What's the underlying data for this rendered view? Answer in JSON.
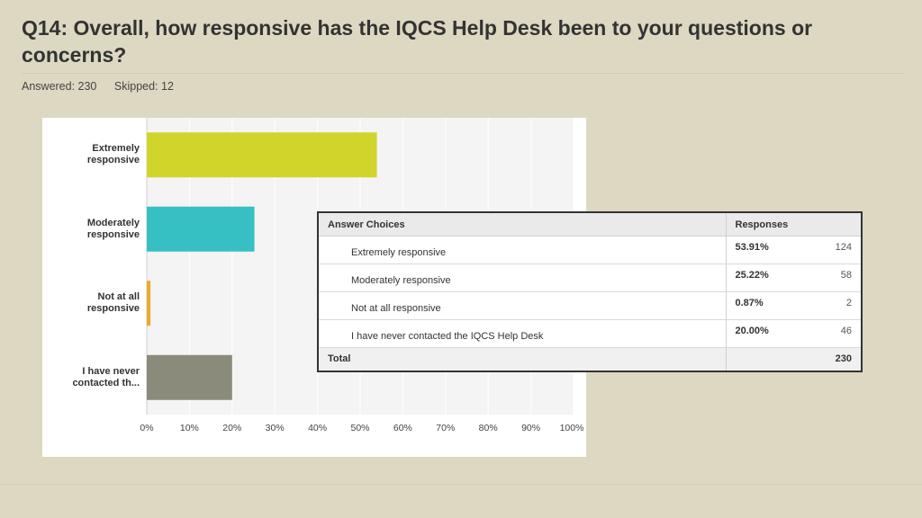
{
  "question": {
    "title": "Q14: Overall, how responsive has the IQCS Help Desk been to your questions or concerns?",
    "answered": "Answered: 230",
    "skipped": "Skipped: 12"
  },
  "chart_data": {
    "type": "bar",
    "orientation": "horizontal",
    "categories": [
      "Extremely responsive",
      "Moderately responsive",
      "Not at all responsive",
      "I have never contacted th..."
    ],
    "values": [
      53.91,
      25.22,
      0.87,
      20.0
    ],
    "colors": [
      "#d1d42a",
      "#36c0c3",
      "#f0a830",
      "#8a8b7b"
    ],
    "xlim": [
      0,
      100
    ],
    "x_ticks": [
      "0%",
      "10%",
      "20%",
      "30%",
      "40%",
      "50%",
      "60%",
      "70%",
      "80%",
      "90%",
      "100%"
    ],
    "grid": true
  },
  "table": {
    "headers": [
      "Answer Choices",
      "Responses"
    ],
    "rows": [
      {
        "choice": "Extremely responsive",
        "percent": "53.91%",
        "count": "124"
      },
      {
        "choice": "Moderately responsive",
        "percent": "25.22%",
        "count": "58"
      },
      {
        "choice": "Not at all responsive",
        "percent": "0.87%",
        "count": "2"
      },
      {
        "choice": "I have never contacted the IQCS Help Desk",
        "percent": "20.00%",
        "count": "46"
      }
    ],
    "total_label": "Total",
    "total_count": "230"
  }
}
